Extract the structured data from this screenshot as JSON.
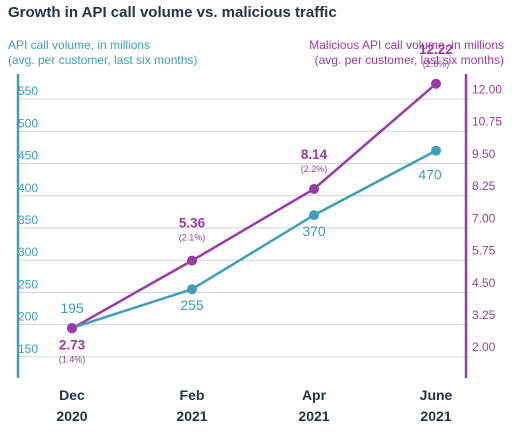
{
  "title": "Growth in API call volume vs. malicious traffic",
  "left_axis_label": [
    "API call volume, in millions",
    "(avg. per customer, last six months)"
  ],
  "right_axis_label": [
    "Malicious API call volume, in millions",
    "(avg. per customer, last six months)"
  ],
  "colors": {
    "api": "#3da0ba",
    "malicious": "#9b3aa8",
    "title": "#22344c",
    "grid": "#d3d6dc"
  },
  "chart_data": {
    "type": "line",
    "title": "Growth in API call volume vs. malicious traffic",
    "categories": [
      [
        "Dec",
        "2020"
      ],
      [
        "Feb",
        "2021"
      ],
      [
        "Apr",
        "2021"
      ],
      [
        "June",
        "2021"
      ]
    ],
    "left_axis": {
      "ylim": [
        125,
        575
      ],
      "ticks": [
        150,
        200,
        250,
        300,
        350,
        400,
        450,
        500,
        550
      ]
    },
    "right_axis": {
      "ylim": [
        1.0,
        12.25
      ],
      "ticks": [
        "2.00",
        "3.25",
        "4.50",
        "5.75",
        "7.00",
        "8.25",
        "9.50",
        "10.75",
        "12.00"
      ]
    },
    "grid": true,
    "series": [
      {
        "name": "API call volume, in millions",
        "axis": "left",
        "values": [
          195,
          255,
          370,
          470
        ],
        "labels": [
          "195",
          "255",
          "370",
          "470"
        ]
      },
      {
        "name": "Malicious API call volume, in millions",
        "axis": "right",
        "values": [
          2.73,
          5.36,
          8.14,
          12.22
        ],
        "labels": [
          "2.73",
          "5.36",
          "8.14",
          "12.22"
        ],
        "sublabels": [
          "(1.4%)",
          "(2.1%)",
          "(2.2%)",
          "(2.6%)"
        ]
      }
    ]
  }
}
